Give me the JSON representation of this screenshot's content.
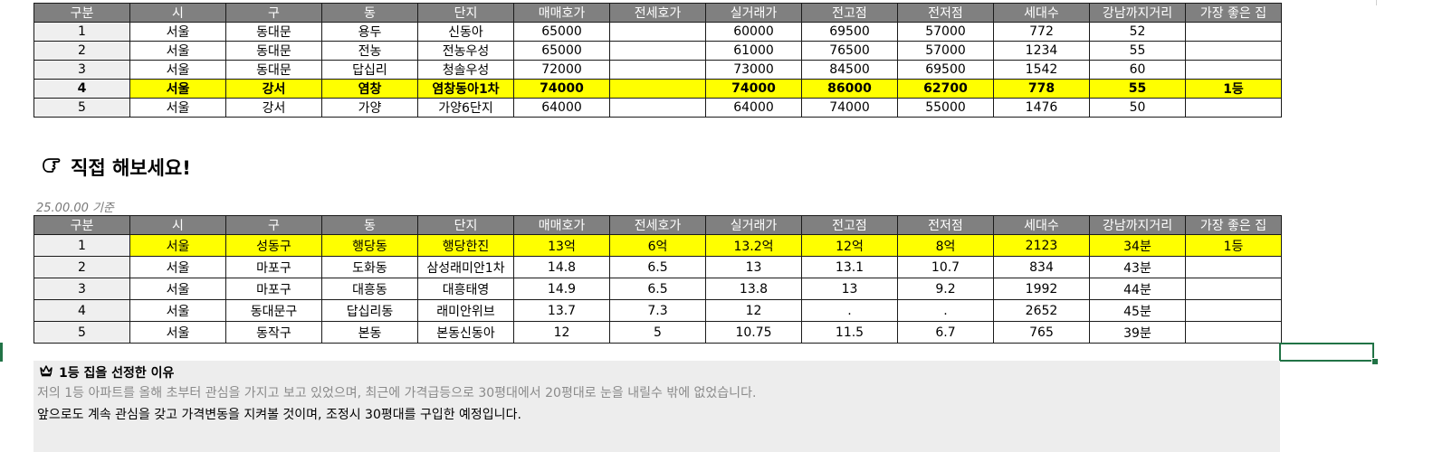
{
  "headers": [
    "구분",
    "시",
    "구",
    "동",
    "단지",
    "매매호가",
    "전세호가",
    "실거래가",
    "전고점",
    "전저점",
    "세대수",
    "강남까지거리",
    "가장 좋은 집"
  ],
  "table1": {
    "rows": [
      [
        "1",
        "서울",
        "동대문",
        "용두",
        "신동아",
        "65000",
        "",
        "60000",
        "69500",
        "57000",
        "772",
        "52",
        ""
      ],
      [
        "2",
        "서울",
        "동대문",
        "전농",
        "전농우성",
        "65000",
        "",
        "61000",
        "76500",
        "57000",
        "1234",
        "55",
        ""
      ],
      [
        "3",
        "서울",
        "동대문",
        "답십리",
        "청솔우성",
        "72000",
        "",
        "73000",
        "84500",
        "69500",
        "1542",
        "60",
        ""
      ],
      [
        "4",
        "서울",
        "강서",
        "염창",
        "염창동아1차",
        "74000",
        "",
        "74000",
        "86000",
        "62700",
        "778",
        "55",
        "1등"
      ],
      [
        "5",
        "서울",
        "강서",
        "가양",
        "가양6단지",
        "64000",
        "",
        "64000",
        "74000",
        "55000",
        "1476",
        "50",
        ""
      ]
    ],
    "highlight_row_index": 3,
    "highlight_color": "#ffff00"
  },
  "section": {
    "title": "직접 해보세요!",
    "icon": "pointing-hand-icon",
    "as_of": "25.00.00 기준"
  },
  "table2": {
    "rows": [
      [
        "1",
        "서울",
        "성동구",
        "행당동",
        "행당한진",
        "13억",
        "6억",
        "13.2억",
        "12억",
        "8억",
        "2123",
        "34분",
        "1등"
      ],
      [
        "2",
        "서울",
        "마포구",
        "도화동",
        "삼성래미안1차",
        "14.8",
        "6.5",
        "13",
        "13.1",
        "10.7",
        "834",
        "43분",
        ""
      ],
      [
        "3",
        "서울",
        "마포구",
        "대흥동",
        "대흥태영",
        "14.9",
        "6.5",
        "13.8",
        "13",
        "9.2",
        "1992",
        "44분",
        ""
      ],
      [
        "4",
        "서울",
        "동대문구",
        "답십리동",
        "래미안위브",
        "13.7",
        "7.3",
        "12",
        ".",
        ".",
        "2652",
        "45분",
        ""
      ],
      [
        "5",
        "서울",
        "동작구",
        "본동",
        "본동신동아",
        "12",
        "5",
        "10.75",
        "11.5",
        "6.7",
        "765",
        "39분",
        ""
      ]
    ],
    "highlight_row_index": 0,
    "highlight_color": "#ffff00"
  },
  "reason": {
    "icon": "crown-icon",
    "title": "1등 집을 선정한 이유",
    "line1": "저의 1등 아파트를 올해 초부터 관심을 가지고 보고 있었으며, 최근에 가격급등으로 30평대에서 20평대로 눈을 내릴수 밖에 없었습니다.",
    "line2": "앞으로도 계속 관심을 갖고 가격변동을 지켜볼 것이며, 조정시 30평대를 구입한 예정입니다."
  },
  "colors": {
    "header_bg": "#808080",
    "highlight": "#ffff00",
    "selection": "#217346",
    "note_bg": "#ededed"
  }
}
